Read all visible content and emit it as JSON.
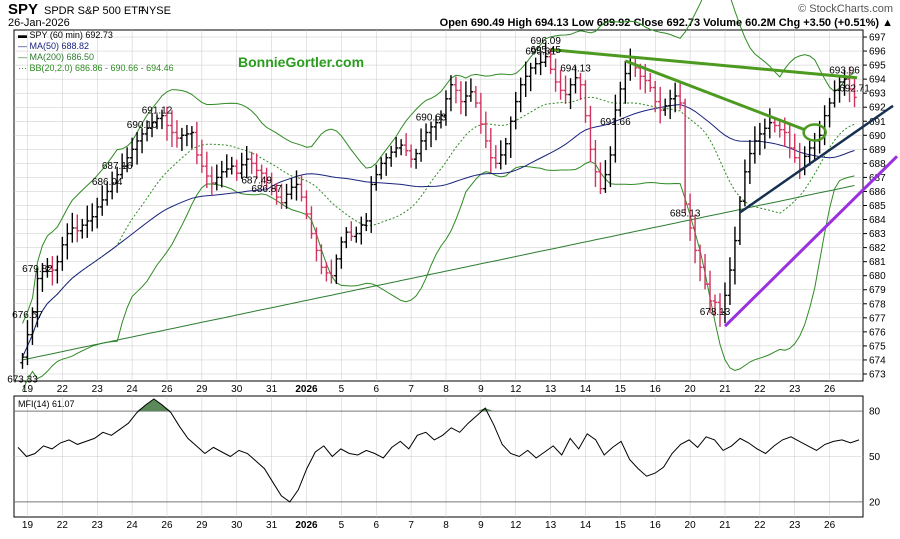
{
  "header": {
    "symbol": "SPY",
    "name": "SPDR S&P 500 ETF",
    "exchange": "NYSE",
    "date": "26-Jan-2026",
    "quote": "Open 690.49  High 694.13  Low 689.92  Close 692.73  Volume 60.2M  Chg +3.50 (+0.51%) ▲",
    "source": "© StockCharts.com"
  },
  "legend": {
    "main": "▬ SPY (60 min) 692.73",
    "ma50": "— MA(50) 688.82",
    "ma200": "— MA(200) 686.50",
    "bb": "⋯ BB(20,2.0) 686.86 - 690.66 - 694.46"
  },
  "watermark": "BonnieGortler.com",
  "colors": {
    "up": "#000000",
    "down": "#d1335f",
    "ma50": "#1a237e",
    "ma200": "#2e7d32",
    "bb": "#2e8b22",
    "trend_green": "#4c9a1f",
    "trend_navy": "#17304f",
    "trend_purple": "#9b30e0",
    "mfi_fill": "#5a8a5a",
    "grid": "#c8c8c8"
  },
  "chart_data": [
    {
      "type": "ohlc",
      "title": "SPY (60 min)",
      "ylim": [
        672.5,
        697.5
      ],
      "y_ticks": [
        673,
        674,
        675,
        676,
        677,
        678,
        679,
        680,
        681,
        682,
        683,
        684,
        685,
        686,
        687,
        688,
        689,
        690,
        691,
        692,
        693,
        694,
        695,
        696,
        697
      ],
      "x_tick_labels": [
        "19",
        "22",
        "23",
        "24",
        "26",
        "29",
        "30",
        "31",
        "2026",
        "5",
        "6",
        "7",
        "8",
        "9",
        "12",
        "13",
        "14",
        "15",
        "16",
        "20",
        "21",
        "22",
        "23",
        "26"
      ],
      "bars_per_session": 7,
      "session_closes": [
        [
          19,
          674.2,
          675.8,
          677.4,
          679.8,
          680.3,
          680.6,
          680.4
        ],
        [
          22,
          681.0,
          682.2,
          683.0,
          683.4,
          683.2,
          683.6,
          683.9
        ],
        [
          23,
          684.2,
          684.9,
          685.4,
          686.0,
          686.6,
          687.2,
          687.8
        ],
        [
          24,
          688.4,
          689.0,
          689.6,
          690.1,
          690.5,
          690.9,
          691.2
        ],
        [
          26,
          691.4,
          690.7,
          690.2,
          689.8,
          690.0,
          690.1,
          690.2
        ],
        [
          29,
          688.6,
          687.8,
          687.1,
          686.6,
          687.0,
          687.4,
          687.6
        ],
        [
          30,
          687.8,
          687.3,
          687.9,
          688.3,
          688.0,
          687.5,
          687.3
        ],
        [
          31,
          686.8,
          686.2,
          685.6,
          685.2,
          685.8,
          686.3,
          686.5
        ],
        [
          2026,
          685.6,
          684.4,
          683.0,
          681.8,
          680.6,
          680.2,
          680.0
        ],
        [
          5,
          681.2,
          682.4,
          683.1,
          682.8,
          683.0,
          683.6,
          683.9
        ],
        [
          6,
          686.5,
          687.2,
          688.0,
          688.4,
          688.8,
          689.1,
          689.3
        ],
        [
          7,
          688.9,
          688.3,
          688.7,
          689.6,
          690.2,
          690.6,
          690.9
        ],
        [
          8,
          691.4,
          692.6,
          693.6,
          693.2,
          692.4,
          692.8,
          693.1
        ],
        [
          9,
          692.3,
          690.8,
          689.6,
          688.4,
          688.0,
          688.6,
          689.4
        ],
        [
          12,
          691.0,
          692.4,
          693.6,
          694.2,
          694.8,
          695.1,
          695.2
        ],
        [
          13,
          695.6,
          694.7,
          693.8,
          693.2,
          692.9,
          693.6,
          694.1
        ],
        [
          14,
          693.6,
          691.4,
          689.0,
          687.4,
          686.2,
          687.2,
          688.6
        ],
        [
          15,
          691.8,
          693.3,
          694.4,
          695.1,
          694.8,
          694.2,
          693.9
        ],
        [
          16,
          693.4,
          692.4,
          691.8,
          692.1,
          692.6,
          692.8,
          692.3
        ],
        [
          20,
          685.1,
          683.4,
          681.8,
          680.6,
          679.4,
          678.2,
          678.1
        ],
        [
          21,
          677.4,
          678.6,
          680.4,
          682.5,
          685.3,
          687.4,
          688.7
        ],
        [
          22,
          689.6,
          690.1,
          690.5,
          690.9,
          690.7,
          690.4,
          690.2
        ],
        [
          23,
          689.1,
          688.4,
          687.6,
          688.5,
          689.1,
          689.6,
          690.0
        ],
        [
          26,
          691.4,
          692.3,
          693.2,
          693.8,
          694.0,
          693.3,
          692.7
        ]
      ],
      "annotations": [
        {
          "value": 673.33,
          "text": "673.33"
        },
        {
          "value": 691.66,
          "text": "691.66"
        },
        {
          "value": 686.87,
          "text": "686.87"
        },
        {
          "value": 679.82,
          "text": "679.82"
        },
        {
          "value": 693.96,
          "text": "693.96"
        },
        {
          "value": 687.49,
          "text": "687.49"
        },
        {
          "value": 695.31,
          "text": "695.31"
        },
        {
          "value": 690.63,
          "text": "690.63"
        },
        {
          "value": 696.09,
          "text": "696.09"
        },
        {
          "value": 686.04,
          "text": "686.04"
        },
        {
          "value": 695.45,
          "text": "695.45"
        },
        {
          "value": 692.71,
          "text": "692.71"
        },
        {
          "value": 690.1,
          "text": "690.10"
        },
        {
          "value": 685.13,
          "text": "685.13"
        },
        {
          "value": 678.13,
          "text": "678.13"
        },
        {
          "value": 676.57,
          "text": "676.57"
        },
        {
          "value": 691.12,
          "text": "691.12"
        },
        {
          "value": 687.16,
          "text": "687.16"
        },
        {
          "value": 694.13,
          "text": "694.13"
        }
      ],
      "series": [
        {
          "name": "MA(50)",
          "last": 688.82
        },
        {
          "name": "MA(200)",
          "last": 686.5
        },
        {
          "name": "BB(20,2.0)",
          "lower": 686.86,
          "mid": 690.66,
          "upper": 694.46
        }
      ]
    },
    {
      "type": "line",
      "title": "MFI(14) 61.07",
      "ylim": [
        10,
        90
      ],
      "y_ticks": [
        20,
        50,
        80
      ],
      "x_tick_labels": [
        "19",
        "22",
        "23",
        "24",
        "26",
        "29",
        "30",
        "31",
        "2026",
        "5",
        "6",
        "7",
        "8",
        "9",
        "12",
        "13",
        "14",
        "15",
        "16",
        "20",
        "21",
        "22",
        "23",
        "26"
      ],
      "values": [
        56,
        50,
        52,
        57,
        55,
        59,
        61,
        58,
        60,
        62,
        66,
        64,
        68,
        72,
        79,
        84,
        88,
        84,
        79,
        70,
        62,
        57,
        52,
        56,
        53,
        50,
        54,
        52,
        47,
        42,
        33,
        24,
        20,
        28,
        42,
        53,
        57,
        50,
        55,
        52,
        51,
        54,
        52,
        49,
        56,
        60,
        55,
        64,
        66,
        61,
        64,
        69,
        66,
        72,
        77,
        82,
        71,
        58,
        52,
        50,
        54,
        49,
        53,
        57,
        51,
        62,
        55,
        65,
        61,
        51,
        56,
        60,
        48,
        42,
        37,
        39,
        43,
        52,
        58,
        61,
        56,
        63,
        61,
        54,
        57,
        62,
        59,
        55,
        52,
        57,
        61,
        63,
        60,
        57,
        54,
        58,
        60,
        61,
        59,
        61
      ]
    }
  ]
}
